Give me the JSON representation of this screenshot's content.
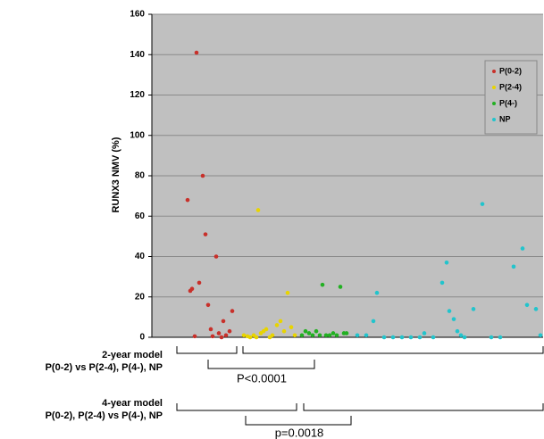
{
  "chart_data": {
    "type": "scatter",
    "y_label": "RUNX3 NMV (%)",
    "ylim": [
      0,
      160
    ],
    "yticks": [
      0,
      20,
      40,
      60,
      80,
      100,
      120,
      140,
      160
    ],
    "xlim": [
      0,
      438
    ],
    "grid": true,
    "legend": "upper right",
    "series": [
      {
        "name": "P(0-2)",
        "color": "#c8302a",
        "x": [
          40,
          43,
          45,
          48,
          50,
          53,
          57,
          60,
          63,
          66,
          68,
          72,
          75,
          78,
          80,
          83,
          87,
          90
        ],
        "values": [
          68,
          23,
          24,
          0.5,
          141,
          27,
          80,
          51,
          16,
          4,
          0.5,
          40,
          2,
          0,
          8,
          1,
          3,
          13
        ]
      },
      {
        "name": "P(2-4)",
        "color": "#e8d400",
        "x": [
          103,
          107,
          110,
          114,
          117,
          119,
          122,
          125,
          128,
          132,
          135,
          140,
          144,
          148,
          152,
          156,
          160
        ],
        "values": [
          1,
          0.5,
          0,
          1,
          0,
          63,
          2,
          3,
          4,
          0,
          1,
          6,
          8,
          3,
          22,
          5,
          1
        ]
      },
      {
        "name": "P(4-)",
        "color": "#22b022",
        "x": [
          168,
          172,
          176,
          180,
          184,
          188,
          191,
          195,
          199,
          203,
          207,
          211,
          215,
          218
        ],
        "values": [
          1,
          3,
          2,
          1,
          3,
          1,
          26,
          1,
          1,
          2,
          1,
          25,
          2,
          2
        ]
      },
      {
        "name": "NP",
        "color": "#22c4cc",
        "x": [
          230,
          240,
          248,
          252,
          260,
          270,
          280,
          290,
          300,
          305,
          315,
          325,
          330,
          333,
          338,
          342,
          346,
          350,
          360,
          370,
          380,
          390,
          405,
          415,
          420,
          430,
          435
        ],
        "values": [
          1,
          1,
          8,
          22,
          0,
          0,
          0,
          0,
          0,
          2,
          0,
          27,
          37,
          13,
          9,
          3,
          1,
          0,
          14,
          66,
          0,
          0,
          35,
          44,
          16,
          14,
          1
        ]
      }
    ],
    "annotations": [
      "2-year model",
      "P(0-2) vs P(2-4), P(4-), NP",
      "P<0.0001",
      "4-year model",
      "P(0-2), P(2-4) vs P(4-), NP",
      "p=0.0018"
    ]
  }
}
